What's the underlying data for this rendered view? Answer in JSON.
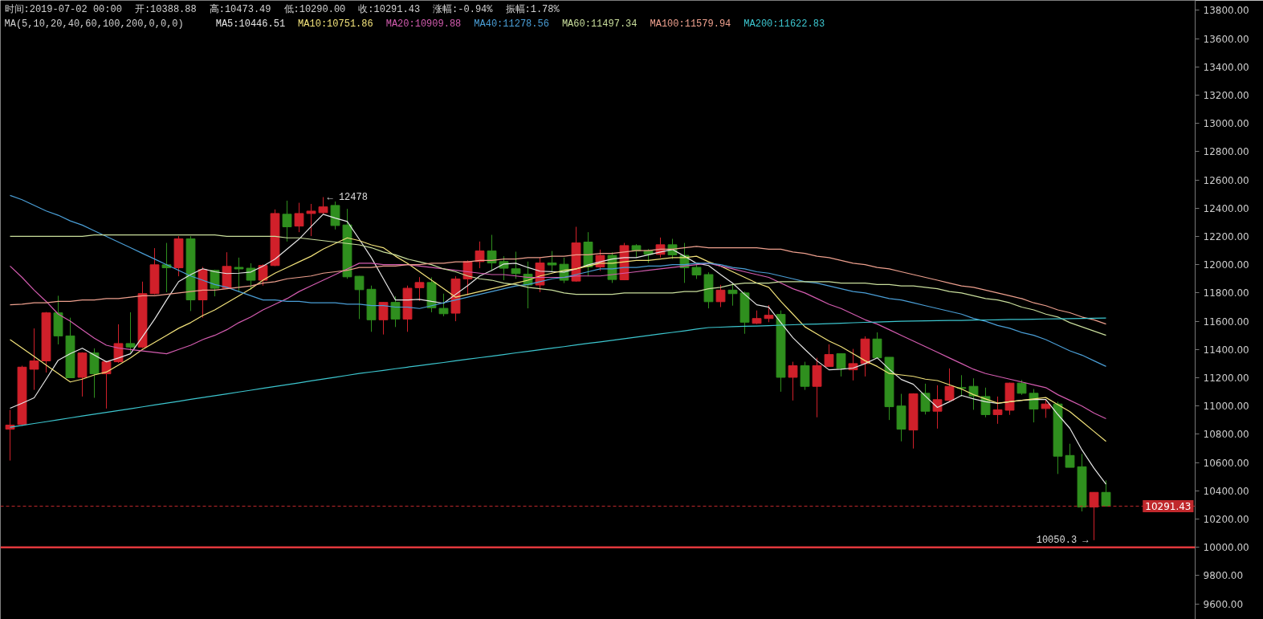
{
  "chart_data": {
    "type": "candlestick",
    "categories": [
      null,
      null,
      null,
      null,
      null,
      null,
      null,
      null,
      null,
      null,
      null,
      null,
      null,
      null,
      null,
      null,
      null,
      null,
      null,
      null,
      null,
      null,
      null,
      null,
      null,
      null,
      null,
      null,
      null,
      null,
      null,
      null,
      null,
      null,
      null,
      null,
      null,
      null,
      null,
      null,
      null,
      null,
      null,
      null,
      null,
      null,
      null,
      null,
      null,
      null,
      null,
      null,
      null,
      null,
      null,
      null,
      null,
      null,
      null,
      null,
      null,
      null,
      null,
      null,
      null,
      null,
      null,
      null,
      null,
      null,
      null,
      null,
      null,
      null,
      null,
      null,
      null,
      null,
      null,
      null,
      null,
      null,
      null,
      null,
      null,
      null,
      null,
      null,
      null,
      null,
      null,
      null
    ],
    "ohlc": [
      [
        10836,
        10973,
        10614,
        10865
      ],
      [
        10869,
        11285,
        10860,
        11275
      ],
      [
        11260,
        11549,
        11114,
        11319
      ],
      [
        11319,
        11665,
        11237,
        11659
      ],
      [
        11659,
        11780,
        11436,
        11496
      ],
      [
        11496,
        11625,
        11200,
        11200
      ],
      [
        11203,
        11380,
        11067,
        11375
      ],
      [
        11375,
        11408,
        11058,
        11228
      ],
      [
        11228,
        11320,
        10982,
        11313
      ],
      [
        11313,
        11578,
        11305,
        11442
      ],
      [
        11442,
        11663,
        11379,
        11417
      ],
      [
        11417,
        11880,
        11410,
        11795
      ],
      [
        11795,
        12117,
        11790,
        11999
      ],
      [
        11999,
        12154,
        11805,
        11978
      ],
      [
        11978,
        12202,
        11918,
        12183
      ],
      [
        12183,
        12202,
        11672,
        11751
      ],
      [
        11751,
        11984,
        11625,
        11965
      ],
      [
        11960,
        11965,
        11776,
        11833
      ],
      [
        11833,
        12088,
        11828,
        11988
      ],
      [
        11981,
        12050,
        11805,
        11970
      ],
      [
        11975,
        12010,
        11823,
        11890
      ],
      [
        11890,
        12003,
        11852,
        11994
      ],
      [
        11994,
        12391,
        11990,
        12362
      ],
      [
        12357,
        12453,
        12164,
        12268
      ],
      [
        12273,
        12438,
        12230,
        12362
      ],
      [
        12362,
        12430,
        12202,
        12379
      ],
      [
        12368,
        12478,
        12360,
        12409
      ],
      [
        12419,
        12447,
        12249,
        12277
      ],
      [
        12281,
        12395,
        11900,
        11914
      ],
      [
        11918,
        11920,
        11615,
        11823
      ],
      [
        11826,
        11852,
        11525,
        11610
      ],
      [
        11610,
        11735,
        11506,
        11733
      ],
      [
        11733,
        11776,
        11559,
        11615
      ],
      [
        11615,
        11852,
        11525,
        11833
      ],
      [
        11837,
        11912,
        11744,
        11874
      ],
      [
        11874,
        11910,
        11663,
        11695
      ],
      [
        11691,
        11795,
        11635,
        11653
      ],
      [
        11657,
        11918,
        11600,
        11899
      ],
      [
        11899,
        12030,
        11785,
        12022
      ],
      [
        12022,
        12164,
        11975,
        12097
      ],
      [
        12097,
        12211,
        11956,
        12012
      ],
      [
        12022,
        12060,
        11890,
        11975
      ],
      [
        11971,
        12092,
        11900,
        11937
      ],
      [
        11933,
        12022,
        11691,
        11856
      ],
      [
        11856,
        12050,
        11805,
        12012
      ],
      [
        12012,
        12097,
        11946,
        11998
      ],
      [
        12003,
        12050,
        11870,
        11890
      ],
      [
        11884,
        12268,
        11880,
        12154
      ],
      [
        12160,
        12230,
        11918,
        11984
      ],
      [
        11984,
        12107,
        11956,
        12066
      ],
      [
        12066,
        12088,
        11871,
        11895
      ],
      [
        11893,
        12154,
        11890,
        12135
      ],
      [
        12135,
        12145,
        12050,
        12097
      ],
      [
        12100,
        12111,
        12012,
        12073
      ],
      [
        12073,
        12192,
        12050,
        12141
      ],
      [
        12141,
        12183,
        12040,
        12069
      ],
      [
        12066,
        12154,
        11871,
        11978
      ],
      [
        11981,
        12003,
        11899,
        11927
      ],
      [
        11930,
        11946,
        11691,
        11738
      ],
      [
        11738,
        11857,
        11700,
        11820
      ],
      [
        11820,
        11870,
        11710,
        11795
      ],
      [
        11800,
        11810,
        11511,
        11593
      ],
      [
        11585,
        11676,
        11580,
        11619
      ],
      [
        11619,
        11714,
        11593,
        11642
      ],
      [
        11648,
        11676,
        11101,
        11203
      ],
      [
        11203,
        11313,
        11039,
        11285
      ],
      [
        11285,
        11313,
        11114,
        11139
      ],
      [
        11139,
        11341,
        10920,
        11285
      ],
      [
        11280,
        11436,
        11280,
        11364
      ],
      [
        11370,
        11370,
        11209,
        11266
      ],
      [
        11256,
        11404,
        11181,
        11300
      ],
      [
        11300,
        11493,
        11209,
        11474
      ],
      [
        11474,
        11521,
        11341,
        11341
      ],
      [
        11345,
        11345,
        10901,
        10995
      ],
      [
        11000,
        11086,
        10750,
        10836
      ],
      [
        10830,
        11090,
        10699,
        11086
      ],
      [
        11090,
        11158,
        10940,
        10963
      ],
      [
        10963,
        11147,
        10840,
        11045
      ],
      [
        11040,
        11266,
        11030,
        11139
      ],
      [
        11130,
        11218,
        11067,
        11125
      ],
      [
        11139,
        11196,
        10973,
        11071
      ],
      [
        11067,
        11130,
        10920,
        10939
      ],
      [
        10939,
        11067,
        10874,
        10973
      ],
      [
        10970,
        11165,
        10937,
        11162
      ],
      [
        11162,
        11184,
        11079,
        11090
      ],
      [
        11090,
        11120,
        10884,
        10978
      ],
      [
        10982,
        11048,
        10916,
        11014
      ],
      [
        11014,
        11030,
        10519,
        10645
      ],
      [
        10650,
        10733,
        10566,
        10566
      ],
      [
        10570,
        10661,
        10254,
        10285
      ],
      [
        10285,
        10390,
        10050.3,
        10388.88
      ],
      [
        10388.88,
        10473.49,
        10290.0,
        10291.43
      ]
    ],
    "colors": [
      "#d0202a",
      "#d0202a",
      "#d0202a",
      "#d0202a",
      "#2f8f1e",
      "#2f8f1e",
      "#d0202a",
      "#2f8f1e",
      "#d0202a",
      "#d0202a",
      "#2f8f1e",
      "#d0202a",
      "#d0202a",
      "#2f8f1e",
      "#d0202a",
      "#2f8f1e",
      "#d0202a",
      "#2f8f1e",
      "#d0202a",
      "#2f8f1e",
      "#2f8f1e",
      "#d0202a",
      "#d0202a",
      "#2f8f1e",
      "#d0202a",
      "#d0202a",
      "#d0202a",
      "#2f8f1e",
      "#2f8f1e",
      "#2f8f1e",
      "#2f8f1e",
      "#d0202a",
      "#2f8f1e",
      "#d0202a",
      "#d0202a",
      "#2f8f1e",
      "#2f8f1e",
      "#d0202a",
      "#d0202a",
      "#d0202a",
      "#2f8f1e",
      "#2f8f1e",
      "#2f8f1e",
      "#2f8f1e",
      "#d0202a",
      "#2f8f1e",
      "#2f8f1e",
      "#d0202a",
      "#2f8f1e",
      "#d0202a",
      "#2f8f1e",
      "#d0202a",
      "#2f8f1e",
      "#2f8f1e",
      "#d0202a",
      "#2f8f1e",
      "#2f8f1e",
      "#2f8f1e",
      "#2f8f1e",
      "#d0202a",
      "#2f8f1e",
      "#2f8f1e",
      "#d0202a",
      "#d0202a",
      "#2f8f1e",
      "#d0202a",
      "#2f8f1e",
      "#d0202a",
      "#d0202a",
      "#2f8f1e",
      "#d0202a",
      "#d0202a",
      "#2f8f1e",
      "#2f8f1e",
      "#2f8f1e",
      "#d0202a",
      "#2f8f1e",
      "#d0202a",
      "#d0202a",
      "#2f8f1e",
      "#2f8f1e",
      "#2f8f1e",
      "#d0202a",
      "#d0202a",
      "#2f8f1e",
      "#2f8f1e",
      "#d0202a",
      "#2f8f1e",
      "#2f8f1e",
      "#2f8f1e",
      "#d0202a",
      "#2f8f1e"
    ],
    "series": [
      {
        "type": "line",
        "name": "MA5:10446.51",
        "color": "#e6e6e6",
        "values": [
          10984,
          11020,
          11058,
          11190,
          11324,
          11370,
          11409,
          11360,
          11313,
          11340,
          11370,
          11490,
          11614,
          11750,
          11880,
          11930,
          11971,
          11950,
          11937,
          11940,
          11948,
          11990,
          12039,
          12110,
          12181,
          12270,
          12357,
          12330,
          12306,
          12180,
          12050,
          11900,
          11750,
          11750,
          11755,
          11740,
          11727,
          11790,
          11852,
          11920,
          11960,
          12005,
          12010,
          11980,
          11954,
          11950,
          11948,
          11970,
          11999,
          12020,
          12040,
          12050,
          12050,
          12070,
          12090,
          12107,
          12060,
          12010,
          11994,
          11930,
          11869,
          11790,
          11716,
          11699,
          11590,
          11483,
          11400,
          11320,
          11256,
          11260,
          11268,
          11300,
          11341,
          11260,
          11188,
          11154,
          11070,
          10990,
          11030,
          11075,
          11050,
          11030,
          11018,
          11030,
          11040,
          11046,
          11046,
          10940,
          10842,
          10689,
          10560,
          10447
        ]
      },
      {
        "type": "line",
        "name": "MA10:10751.86",
        "color": "#f2e27a",
        "values": [
          11470,
          11410,
          11350,
          11290,
          11230,
          11170,
          11190,
          11220,
          11240,
          11290,
          11340,
          11400,
          11450,
          11500,
          11550,
          11590,
          11640,
          11680,
          11730,
          11780,
          11830,
          11890,
          11940,
          11980,
          12020,
          12060,
          12110,
          12150,
          12190,
          12170,
          12140,
          12120,
          12060,
          12010,
          11950,
          11890,
          11830,
          11770,
          11790,
          11810,
          11830,
          11850,
          11870,
          11890,
          11920,
          11940,
          11960,
          11970,
          11990,
          12010,
          12010,
          12020,
          12030,
          12030,
          12040,
          12050,
          12050,
          12060,
          12020,
          11990,
          11950,
          11910,
          11870,
          11840,
          11740,
          11650,
          11560,
          11510,
          11460,
          11420,
          11370,
          11320,
          11280,
          11230,
          11220,
          11210,
          11190,
          11180,
          11150,
          11120,
          11080,
          11050,
          11020,
          11030,
          11040,
          11050,
          11060,
          11010,
          10960,
          10890,
          10820,
          10750
        ]
      },
      {
        "type": "line",
        "name": "MA20:10909.88",
        "color": "#d45cb0",
        "values": [
          11990,
          11910,
          11820,
          11740,
          11650,
          11600,
          11540,
          11480,
          11430,
          11410,
          11400,
          11390,
          11380,
          11370,
          11400,
          11430,
          11470,
          11500,
          11540,
          11590,
          11630,
          11680,
          11720,
          11760,
          11810,
          11850,
          11890,
          11930,
          11970,
          12010,
          12010,
          12000,
          12000,
          12000,
          11990,
          11980,
          11970,
          11960,
          11950,
          11940,
          11930,
          11930,
          11920,
          11910,
          11910,
          11910,
          11910,
          11920,
          11920,
          11920,
          11930,
          11940,
          11950,
          11960,
          11970,
          11980,
          11990,
          12000,
          12010,
          11990,
          11970,
          11950,
          11930,
          11910,
          11870,
          11830,
          11800,
          11760,
          11720,
          11690,
          11650,
          11610,
          11580,
          11540,
          11500,
          11460,
          11420,
          11380,
          11340,
          11300,
          11260,
          11230,
          11210,
          11190,
          11170,
          11150,
          11130,
          11080,
          11040,
          11000,
          10950,
          10910
        ]
      },
      {
        "type": "line",
        "name": "MA40:11278.56",
        "color": "#4a9ed6",
        "values": [
          12490,
          12460,
          12420,
          12380,
          12350,
          12310,
          12280,
          12240,
          12200,
          12160,
          12120,
          12080,
          12040,
          12000,
          11960,
          11920,
          11890,
          11860,
          11840,
          11810,
          11780,
          11750,
          11750,
          11740,
          11740,
          11730,
          11730,
          11730,
          11720,
          11720,
          11710,
          11710,
          11700,
          11700,
          11690,
          11710,
          11730,
          11750,
          11770,
          11790,
          11810,
          11830,
          11850,
          11860,
          11880,
          11900,
          11910,
          11930,
          11950,
          11970,
          11970,
          11980,
          11980,
          11990,
          11990,
          12000,
          12000,
          12010,
          12010,
          12000,
          11980,
          11970,
          11950,
          11940,
          11920,
          11900,
          11880,
          11870,
          11850,
          11830,
          11810,
          11800,
          11780,
          11760,
          11750,
          11730,
          11710,
          11690,
          11670,
          11650,
          11620,
          11600,
          11570,
          11550,
          11520,
          11500,
          11470,
          11430,
          11390,
          11360,
          11320,
          11280
        ]
      },
      {
        "type": "line",
        "name": "MA60:11497.34",
        "color": "#c9de9c",
        "values": [
          12200,
          12200,
          12200,
          12200,
          12200,
          12200,
          12200,
          12210,
          12210,
          12210,
          12210,
          12210,
          12210,
          12210,
          12210,
          12210,
          12210,
          12210,
          12200,
          12200,
          12200,
          12200,
          12200,
          12190,
          12190,
          12180,
          12170,
          12160,
          12150,
          12140,
          12120,
          12090,
          12070,
          12040,
          12020,
          12000,
          11970,
          11950,
          11920,
          11900,
          11890,
          11870,
          11860,
          11840,
          11830,
          11820,
          11800,
          11790,
          11790,
          11790,
          11790,
          11800,
          11800,
          11800,
          11800,
          11800,
          11810,
          11810,
          11830,
          11840,
          11860,
          11870,
          11870,
          11870,
          11880,
          11880,
          11880,
          11880,
          11880,
          11870,
          11870,
          11870,
          11860,
          11860,
          11850,
          11850,
          11840,
          11830,
          11810,
          11800,
          11780,
          11760,
          11750,
          11730,
          11700,
          11680,
          11650,
          11630,
          11590,
          11560,
          11530,
          11500
        ]
      },
      {
        "type": "line",
        "name": "MA100:11579.94",
        "color": "#eea08e",
        "values": [
          11716,
          11720,
          11730,
          11730,
          11740,
          11740,
          11750,
          11750,
          11760,
          11760,
          11770,
          11780,
          11780,
          11790,
          11800,
          11810,
          11820,
          11820,
          11830,
          11840,
          11850,
          11870,
          11880,
          11900,
          11910,
          11920,
          11940,
          11950,
          11960,
          11980,
          11980,
          11990,
          11990,
          12000,
          12000,
          12010,
          12010,
          12020,
          12020,
          12030,
          12030,
          12040,
          12040,
          12050,
          12050,
          12060,
          12060,
          12070,
          12070,
          12080,
          12080,
          12090,
          12100,
          12100,
          12110,
          12110,
          12120,
          12130,
          12120,
          12120,
          12120,
          12120,
          12120,
          12110,
          12110,
          12090,
          12080,
          12060,
          12050,
          12030,
          12010,
          12000,
          11980,
          11970,
          11950,
          11930,
          11910,
          11890,
          11870,
          11850,
          11840,
          11820,
          11800,
          11780,
          11760,
          11730,
          11710,
          11680,
          11660,
          11630,
          11610,
          11580
        ]
      },
      {
        "type": "line",
        "name": "MA200:11622.83",
        "color": "#3cc6cf",
        "values": [
          10850,
          10863,
          10876,
          10889,
          10902,
          10916,
          10929,
          10942,
          10955,
          10968,
          10981,
          10994,
          11007,
          11020,
          11033,
          11047,
          11060,
          11073,
          11086,
          11099,
          11112,
          11125,
          11138,
          11151,
          11164,
          11178,
          11191,
          11204,
          11217,
          11230,
          11241,
          11252,
          11264,
          11275,
          11286,
          11297,
          11308,
          11320,
          11331,
          11342,
          11353,
          11364,
          11376,
          11387,
          11398,
          11409,
          11420,
          11432,
          11443,
          11454,
          11465,
          11476,
          11488,
          11499,
          11510,
          11521,
          11532,
          11544,
          11555,
          11558,
          11561,
          11564,
          11566,
          11569,
          11572,
          11575,
          11578,
          11580,
          11583,
          11586,
          11589,
          11592,
          11594,
          11597,
          11600,
          11601,
          11603,
          11604,
          11605,
          11606,
          11608,
          11609,
          11610,
          11612,
          11613,
          11614,
          11616,
          11617,
          11618,
          11620,
          11621,
          11623
        ]
      }
    ],
    "ylim": [
      9490,
      13870
    ],
    "yticks": [
      {
        "value": 9600,
        "label": "9600.00"
      },
      {
        "value": 9800,
        "label": "9800.00"
      },
      {
        "value": 10000,
        "label": "10000.00"
      },
      {
        "value": 10200,
        "label": "10200.00"
      },
      {
        "value": 10400,
        "label": "10400.00"
      },
      {
        "value": 10600,
        "label": "10600.00"
      },
      {
        "value": 10800,
        "label": "10800.00"
      },
      {
        "value": 11000,
        "label": "11000.00"
      },
      {
        "value": 11200,
        "label": "11200.00"
      },
      {
        "value": 11400,
        "label": "11400.00"
      },
      {
        "value": 11600,
        "label": "11600.00"
      },
      {
        "value": 11800,
        "label": "11800.00"
      },
      {
        "value": 12000,
        "label": "12000.00"
      },
      {
        "value": 12200,
        "label": "12200.00"
      },
      {
        "value": 12400,
        "label": "12400.00"
      },
      {
        "value": 12600,
        "label": "12600.00"
      },
      {
        "value": 12800,
        "label": "12800.00"
      },
      {
        "value": 13000,
        "label": "13000.00"
      },
      {
        "value": 13200,
        "label": "13200.00"
      },
      {
        "value": 13400,
        "label": "13400.00"
      },
      {
        "value": 13600,
        "label": "13600.00"
      },
      {
        "value": 13800,
        "label": "13800.00"
      }
    ],
    "tick_labels": "y",
    "legend": "top",
    "line_style": "solid",
    "ref_lines": [
      {
        "axis": "y",
        "value": 10291.43,
        "label": "10291.43",
        "color": "#c0282c",
        "line_style": "dashed"
      },
      {
        "axis": "y",
        "value": 10000,
        "label": null,
        "color": "#e0383c",
        "line_style": "solid"
      }
    ],
    "annotations": [
      "时间:2019-07-02 00:00",
      "开:10388.88",
      "高:10473.49",
      "低:10290.00",
      "收:10291.43",
      "涨幅:-0.94%",
      "振幅:1.78%",
      "MA(5,10,20,40,60,100,200,0,0,0)",
      "← 12478",
      "10050.3 →"
    ]
  }
}
